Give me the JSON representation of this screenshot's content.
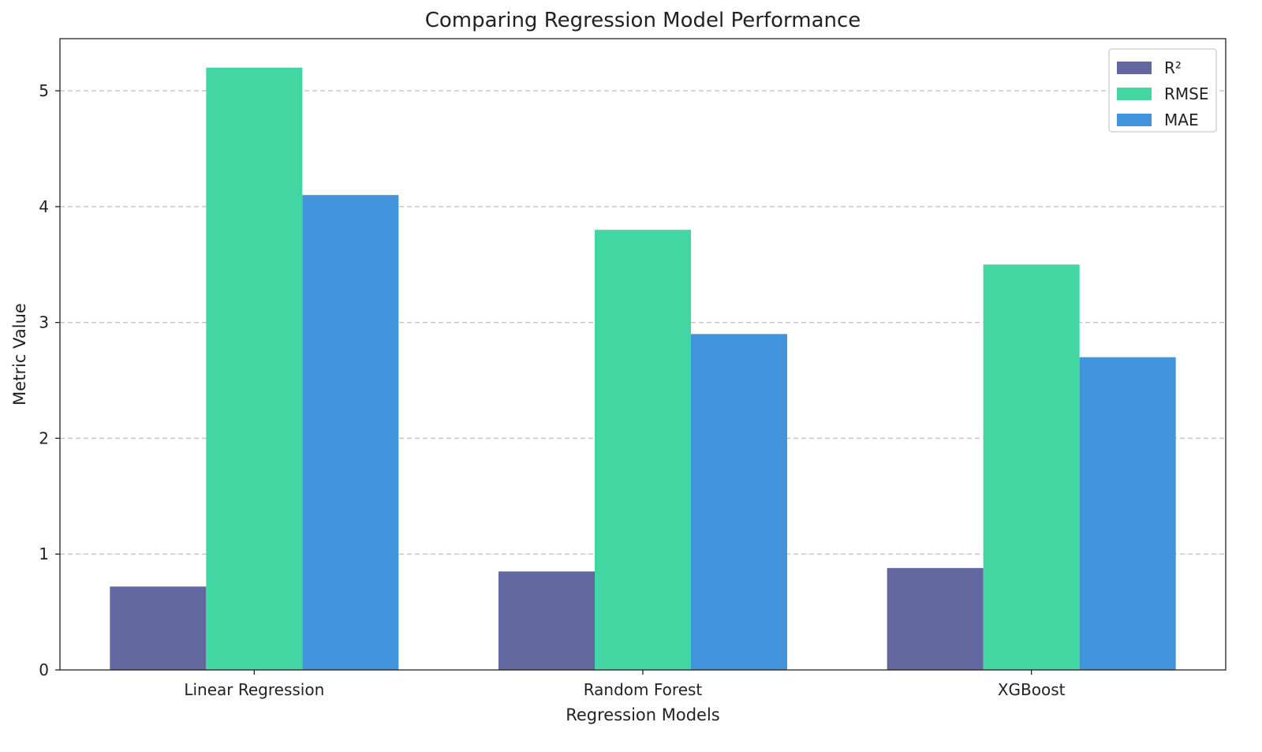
{
  "chart_data": {
    "type": "bar",
    "title": "Comparing Regression Model Performance",
    "xlabel": "Regression Models",
    "ylabel": "Metric Value",
    "categories": [
      "Linear Regression",
      "Random Forest",
      "XGBoost"
    ],
    "series": [
      {
        "name": "R²",
        "values": [
          0.72,
          0.85,
          0.88
        ],
        "color": "#6367a0"
      },
      {
        "name": "RMSE",
        "values": [
          5.2,
          3.8,
          3.5
        ],
        "color": "#42d6a2"
      },
      {
        "name": "MAE",
        "values": [
          4.1,
          2.9,
          2.7
        ],
        "color": "#4194dc"
      }
    ],
    "ylim": [
      0,
      5.45
    ],
    "yticks": [
      0,
      1,
      2,
      3,
      4,
      5
    ],
    "grid": "y-dashed",
    "legend": "top-right"
  }
}
